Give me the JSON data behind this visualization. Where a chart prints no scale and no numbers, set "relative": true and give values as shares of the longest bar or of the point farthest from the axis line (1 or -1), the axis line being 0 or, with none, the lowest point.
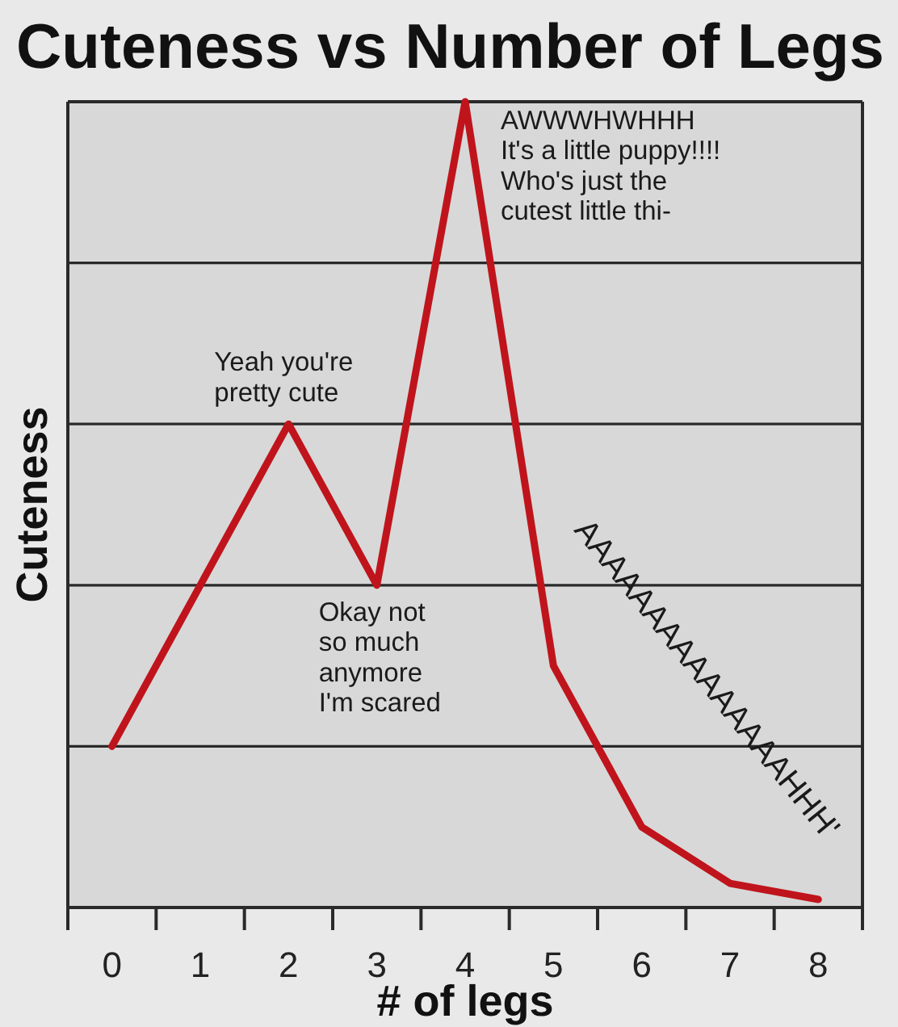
{
  "chart_data": {
    "type": "line",
    "title": "Cuteness vs Number of Legs",
    "xlabel": "# of legs",
    "ylabel": "Cuteness",
    "categories": [
      "0",
      "1",
      "2",
      "3",
      "4",
      "5",
      "6",
      "7",
      "8"
    ],
    "values": [
      0.2,
      0.4,
      0.6,
      0.4,
      1,
      0.3,
      0.1,
      0.03,
      0.01
    ],
    "color": "#c0141c",
    "relative": true,
    "grid": "y",
    "annotations": [
      {
        "text": "Yeah you're\npretty cute",
        "x": "2",
        "y": 0.6
      },
      {
        "text": "Okay not\nso much\nanymore\nI'm scared",
        "x": "3",
        "y": 0.4
      },
      {
        "text": "AWWWHWHHH\nIt's a little puppy!!!!\nWho's just the\ncutest little thi-",
        "x": "4",
        "y": 1
      },
      "AAAAAAAAAAAAAAAHHH'"
    ]
  }
}
